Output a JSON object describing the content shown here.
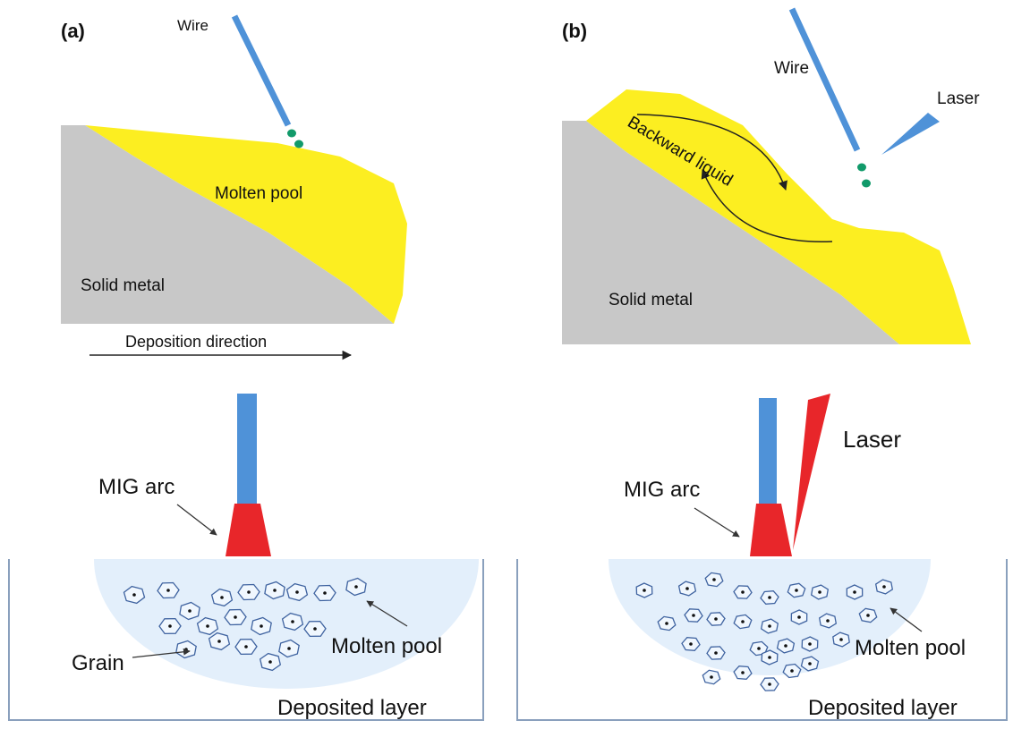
{
  "panels": [
    {
      "label": "(a)",
      "top": {
        "wire": "Wire",
        "pool": "Molten pool",
        "solid": "Solid metal",
        "direction": "Deposition direction"
      },
      "bottom": {
        "arc": "MIG arc",
        "grain": "Grain",
        "pool": "Molten pool",
        "layer": "Deposited layer"
      }
    },
    {
      "label": "(b)",
      "top": {
        "wire": "Wire",
        "laser": "Laser",
        "flow": "Backward liquid",
        "solid": "Solid metal"
      },
      "bottom": {
        "laser": "Laser",
        "arc": "MIG arc",
        "pool": "Molten pool",
        "layer": "Deposited layer"
      }
    }
  ]
}
